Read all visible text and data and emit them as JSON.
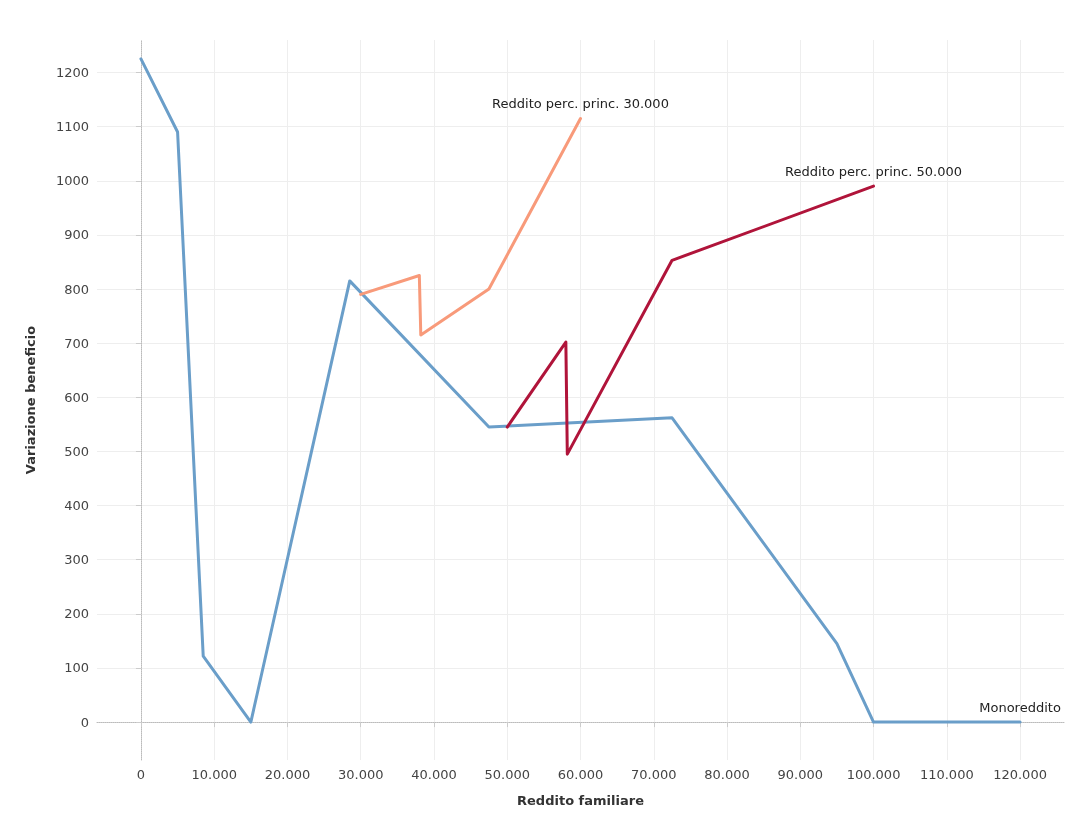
{
  "chart_data": {
    "type": "line",
    "xlabel": "Reddito familiare",
    "ylabel": "Variazione beneficio",
    "series": [
      {
        "name": "Monoreddito",
        "color": "#6a9ec9",
        "x": [
          0,
          5000,
          8500,
          15000,
          28500,
          47500,
          72500,
          95000,
          100000,
          120000
        ],
        "values": [
          1225,
          1090,
          122,
          0,
          815,
          545,
          562,
          145,
          0,
          0
        ]
      },
      {
        "name": "Reddito perc. princ. 30.000",
        "color": "#f89a7a",
        "x": [
          30000,
          38000,
          38200,
          47500,
          60000
        ],
        "values": [
          790,
          825,
          715,
          800,
          1115
        ]
      },
      {
        "name": "Reddito perc. princ. 50.000",
        "color": "#b0143a",
        "x": [
          50000,
          58000,
          58200,
          72500,
          100000
        ],
        "values": [
          545,
          702,
          495,
          853,
          990
        ]
      }
    ],
    "xlim": [
      -6000,
      126000
    ],
    "xticks": [
      0,
      {
        "value": 10000,
        "label": "10.000"
      },
      {
        "value": 20000,
        "label": "20.000"
      },
      {
        "value": 30000,
        "label": "30.000"
      },
      {
        "value": 40000,
        "label": "40.000"
      },
      {
        "value": 50000,
        "label": "50.000"
      },
      {
        "value": 60000,
        "label": "60.000"
      },
      {
        "value": 70000,
        "label": "70.000"
      },
      {
        "value": 80000,
        "label": "80.000"
      },
      {
        "value": 90000,
        "label": "90.000"
      },
      {
        "value": 100000,
        "label": "100.000"
      },
      {
        "value": 110000,
        "label": "110.000"
      },
      {
        "value": 120000,
        "label": "120.000"
      }
    ],
    "ylim": [
      -70,
      1260
    ],
    "yticks": [
      0,
      100,
      200,
      300,
      400,
      500,
      600,
      700,
      800,
      900,
      1000,
      1100,
      1200
    ],
    "grid": true,
    "legend": false,
    "marker": "none",
    "line_style": "solid"
  }
}
